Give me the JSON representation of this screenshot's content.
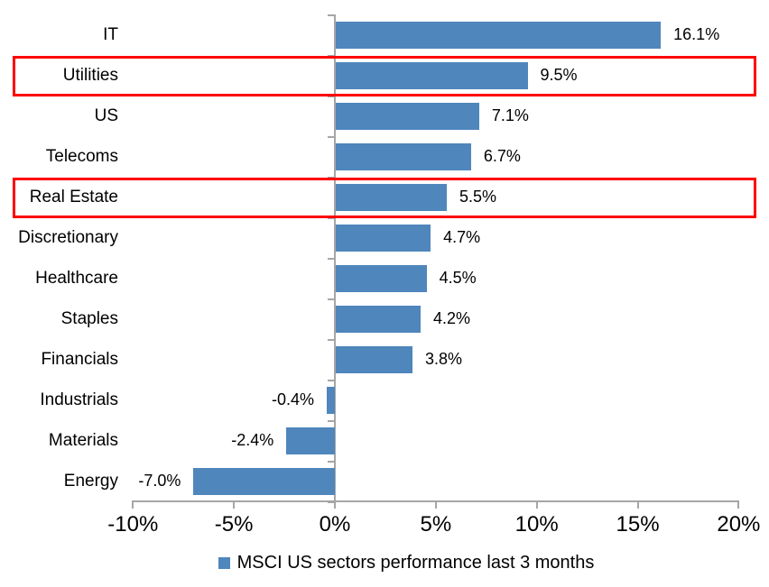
{
  "chart_data": {
    "type": "bar",
    "orientation": "horizontal",
    "title": "",
    "categories": [
      "IT",
      "Utilities",
      "US",
      "Telecoms",
      "Real Estate",
      "Discretionary",
      "Healthcare",
      "Staples",
      "Financials",
      "Industrials",
      "Materials",
      "Energy"
    ],
    "values": [
      16.1,
      9.5,
      7.1,
      6.7,
      5.5,
      4.7,
      4.5,
      4.2,
      3.8,
      -0.4,
      -2.4,
      -7.0
    ],
    "data_labels": [
      "16.1%",
      "9.5%",
      "7.1%",
      "6.7%",
      "5.5%",
      "4.7%",
      "4.5%",
      "4.2%",
      "3.8%",
      "-0.4%",
      "-2.4%",
      "-7.0%"
    ],
    "x_ticks": [
      -10,
      -5,
      0,
      5,
      10,
      15,
      20
    ],
    "x_tick_labels": [
      "-10%",
      "-5%",
      "0%",
      "5%",
      "10%",
      "15%",
      "20%"
    ],
    "xlim": [
      -10,
      20
    ],
    "grid": false,
    "legend": "MSCI US sectors performance last 3 months",
    "legend_position": "bottom",
    "bar_color": "#4F86BC",
    "axis_color": "#A6A6A6",
    "highlight_color": "#FF0000",
    "highlighted_categories": [
      "Utilities",
      "Real Estate"
    ]
  }
}
